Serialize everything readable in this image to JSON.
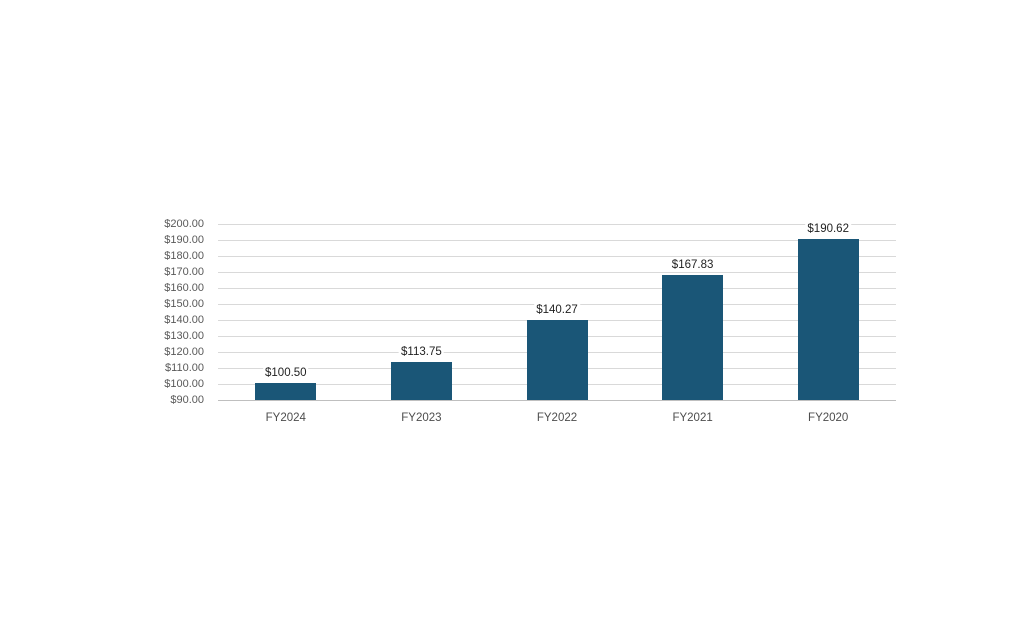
{
  "chart_data": {
    "type": "bar",
    "title": "",
    "xlabel": "",
    "ylabel": "",
    "categories": [
      "FY2024",
      "FY2023",
      "FY2022",
      "FY2021",
      "FY2020"
    ],
    "values": [
      100.5,
      113.75,
      140.27,
      167.83,
      190.62
    ],
    "data_labels": [
      "$100.50",
      "$113.75",
      "$140.27",
      "$167.83",
      "$190.62"
    ],
    "y_tick_values": [
      200,
      190,
      180,
      170,
      160,
      150,
      140,
      130,
      120,
      110,
      100,
      90
    ],
    "y_tick_labels": [
      "$200.00",
      "$190.00",
      "$180.00",
      "$170.00",
      "$160.00",
      "$150.00",
      "$140.00",
      "$130.00",
      "$120.00",
      "$110.00",
      "$100.00",
      "$90.00"
    ],
    "ylim": [
      90,
      200
    ],
    "grid": true,
    "legend_position": "none",
    "bar_color": "#1A5677",
    "gridline_color": "#D9D9D9",
    "axis_line_color": "#BFBFBF",
    "data_label_color": "#1F1F1F",
    "y_tick_label_color": "#595959",
    "x_tick_label_color": "#4D4D4D",
    "background_color": "#FFFFFF"
  }
}
